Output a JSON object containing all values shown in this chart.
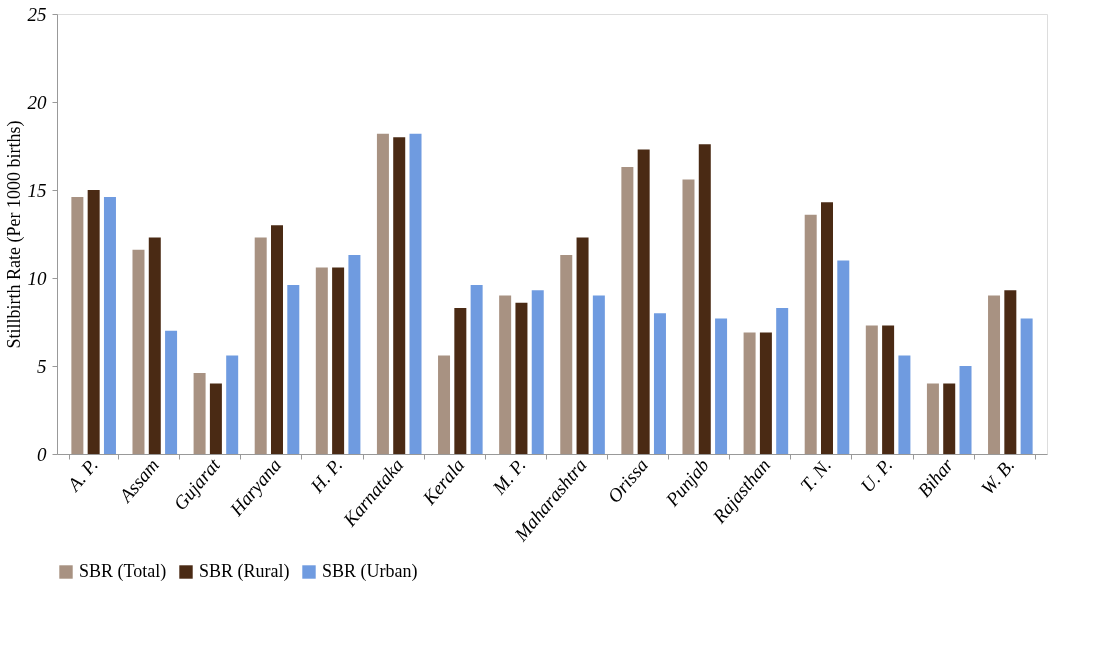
{
  "chart_data": {
    "type": "bar",
    "ylabel": "Stillbirth Rate (Per 1000 births)",
    "categories": [
      "A. P.",
      "Assam",
      "Gujarat",
      "Haryana",
      "H. P.",
      "Karnataka",
      "Kerala",
      "M. P.",
      "Maharashtra",
      "Orissa",
      "Punjab",
      "Rajasthan",
      "T. N.",
      "U. P.",
      "Bihar",
      "W. B."
    ],
    "series": [
      {
        "name": "SBR (Total)",
        "color": "#a89282",
        "values": [
          14.6,
          11.6,
          4.6,
          12.3,
          10.6,
          18.2,
          5.6,
          9.0,
          11.3,
          16.3,
          15.6,
          6.9,
          13.6,
          7.3,
          4.0,
          9.0
        ]
      },
      {
        "name": "SBR (Rural)",
        "color": "#4a2a14",
        "values": [
          15.0,
          12.3,
          4.0,
          13.0,
          10.6,
          18.0,
          8.3,
          8.6,
          12.3,
          17.3,
          17.6,
          6.9,
          14.3,
          7.3,
          4.0,
          9.3
        ]
      },
      {
        "name": "SBR (Urban)",
        "color": "#6f9be0",
        "values": [
          14.6,
          7.0,
          5.6,
          9.6,
          11.3,
          18.2,
          9.6,
          9.3,
          9.0,
          8.0,
          7.7,
          8.3,
          11.0,
          5.6,
          5.0,
          7.7
        ]
      }
    ],
    "ylim": [
      0,
      25
    ],
    "yticks": [
      0,
      5,
      10,
      15,
      20,
      25
    ],
    "grid": false,
    "legend": "bottom"
  }
}
